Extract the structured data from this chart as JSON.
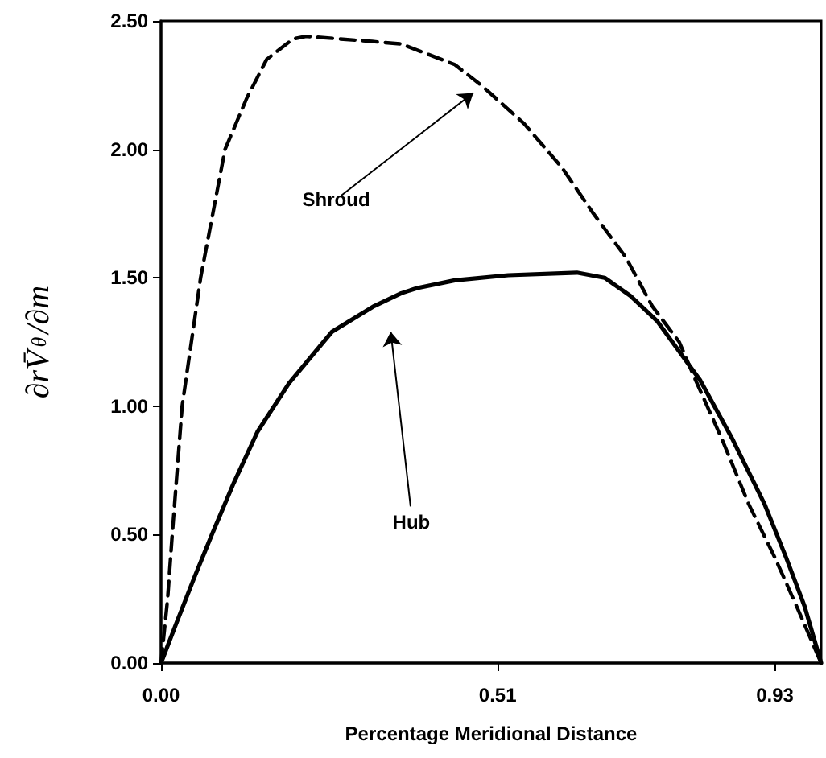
{
  "chart_data": {
    "type": "line",
    "xlabel": "Percentage Meridional Distance",
    "ylabel": "∂rV̄$_{θ}$/∂m",
    "marker": "none",
    "grid": false,
    "xlim": [
      0,
      1
    ],
    "xticks": [
      {
        "value": 0,
        "label": "0.00"
      },
      {
        "value": 0.51,
        "label": "0.51"
      },
      {
        "value": 0.93,
        "label": "0.93"
      }
    ],
    "ylim": [
      0,
      2.5
    ],
    "yticks": [
      {
        "value": 0,
        "label": "0.00"
      },
      {
        "value": 0.5,
        "label": "0.50"
      },
      {
        "value": 1,
        "label": "1.00"
      },
      {
        "value": 1.5,
        "label": "1.50"
      },
      {
        "value": 2,
        "label": "2.00"
      },
      {
        "value": 2.5,
        "label": "2.50"
      }
    ],
    "series": [
      {
        "color": "#000000",
        "line_style": "solid",
        "x": [
          0,
          0.024,
          0.05,
          0.077,
          0.11,
          0.146,
          0.194,
          0.259,
          0.323,
          0.364,
          0.388,
          0.445,
          0.526,
          0.63,
          0.672,
          0.711,
          0.752,
          0.8,
          0.817,
          0.866,
          0.914,
          0.947,
          0.975,
          1.0
        ],
        "values": [
          0,
          0.16,
          0.33,
          0.5,
          0.7,
          0.9,
          1.09,
          1.29,
          1.39,
          1.44,
          1.46,
          1.49,
          1.51,
          1.52,
          1.5,
          1.43,
          1.33,
          1.16,
          1.1,
          0.87,
          0.62,
          0.41,
          0.22,
          0
        ]
      },
      {
        "color": "#000000",
        "line_style": "dashed",
        "x": [
          0,
          0.01,
          0.017,
          0.032,
          0.06,
          0.097,
          0.13,
          0.16,
          0.2,
          0.22,
          0.27,
          0.32,
          0.364,
          0.445,
          0.485,
          0.55,
          0.607,
          0.655,
          0.704,
          0.744,
          0.785,
          0.81,
          0.85,
          0.89,
          0.93,
          0.963,
          1.0
        ],
        "values": [
          0,
          0.25,
          0.5,
          1.0,
          1.5,
          2.0,
          2.2,
          2.35,
          2.43,
          2.44,
          2.43,
          2.42,
          2.41,
          2.33,
          2.25,
          2.1,
          1.93,
          1.75,
          1.58,
          1.39,
          1.25,
          1.1,
          0.87,
          0.62,
          0.41,
          0.22,
          0
        ]
      }
    ],
    "annotations": [
      "Hub",
      "Shroud"
    ]
  }
}
